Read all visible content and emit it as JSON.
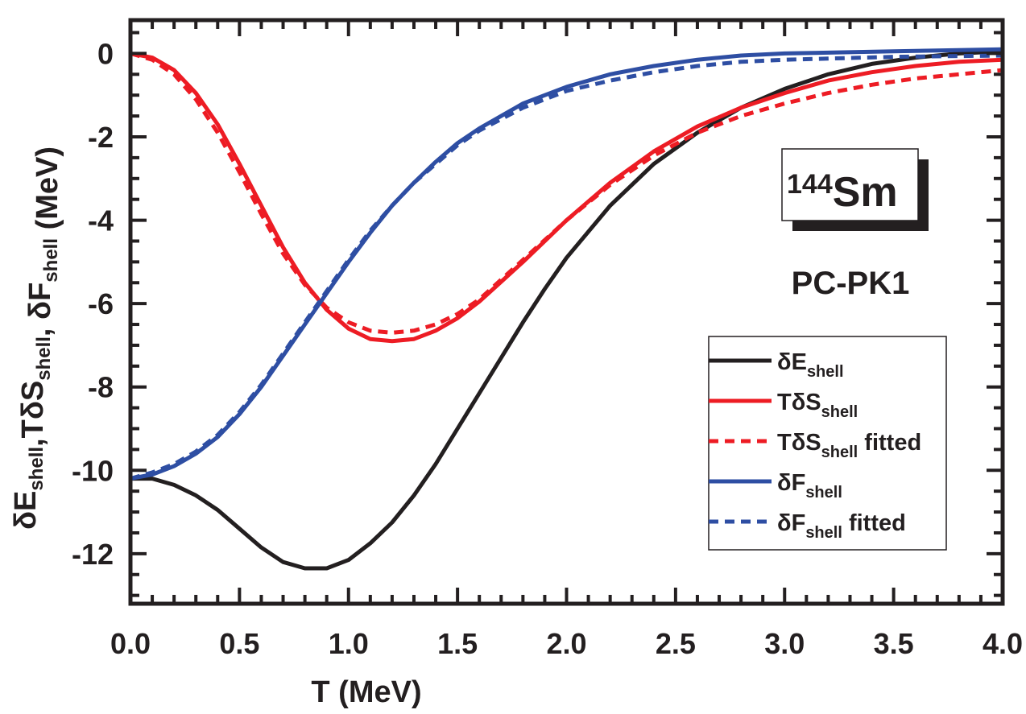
{
  "chart_data": {
    "type": "line",
    "title": "",
    "xlabel": "T (MeV)",
    "ylabel": {
      "parts": [
        {
          "main": "δE",
          "sub": "shell"
        },
        {
          "main": ",TδS",
          "sub": "shell"
        },
        {
          "main": ", δF",
          "sub": "shell"
        },
        {
          "main": " (MeV)",
          "sub": ""
        }
      ]
    },
    "xlim": [
      0,
      4.0
    ],
    "ylim": [
      -13.2,
      0.8
    ],
    "xticks": [
      0.0,
      0.5,
      1.0,
      1.5,
      2.0,
      2.5,
      3.0,
      3.5,
      4.0
    ],
    "xtick_labels": [
      "0.0",
      "0.5",
      "1.0",
      "1.5",
      "2.0",
      "2.5",
      "3.0",
      "3.5",
      "4.0"
    ],
    "x_minor_step": 0.1,
    "yticks": [
      0,
      -2,
      -4,
      -6,
      -8,
      -10,
      -12
    ],
    "ytick_labels": [
      "0",
      "-2",
      "-4",
      "-6",
      "-8",
      "-10",
      "-12"
    ],
    "y_minor_step": 0.5,
    "grid": false,
    "legend_placement": "bottom-right",
    "annotations": {
      "nucleus_mass": "144",
      "nucleus_symbol": "Sm",
      "model": "PC-PK1"
    },
    "series": [
      {
        "name": "δE_shell",
        "legend_main": "δE",
        "legend_sub": "shell",
        "legend_suffix": "",
        "color": "#231f20",
        "dashed": false,
        "x": [
          0,
          0.1,
          0.2,
          0.3,
          0.4,
          0.5,
          0.6,
          0.7,
          0.8,
          0.9,
          1.0,
          1.1,
          1.2,
          1.3,
          1.4,
          1.5,
          1.6,
          1.7,
          1.8,
          1.9,
          2.0,
          2.2,
          2.4,
          2.6,
          2.8,
          3.0,
          3.2,
          3.4,
          3.6,
          3.8,
          4.0
        ],
        "y": [
          -10.2,
          -10.2,
          -10.35,
          -10.6,
          -10.95,
          -11.4,
          -11.85,
          -12.2,
          -12.35,
          -12.35,
          -12.15,
          -11.75,
          -11.25,
          -10.6,
          -9.85,
          -9.0,
          -8.15,
          -7.3,
          -6.45,
          -5.65,
          -4.9,
          -3.65,
          -2.65,
          -1.9,
          -1.3,
          -0.85,
          -0.5,
          -0.25,
          -0.1,
          0.0,
          0.05
        ]
      },
      {
        "name": "TδS_shell",
        "legend_main": "TδS",
        "legend_sub": "shell",
        "legend_suffix": "",
        "color": "#ed1c24",
        "dashed": false,
        "x": [
          0,
          0.1,
          0.2,
          0.3,
          0.4,
          0.5,
          0.6,
          0.7,
          0.8,
          0.9,
          1.0,
          1.1,
          1.2,
          1.3,
          1.4,
          1.5,
          1.6,
          1.8,
          2.0,
          2.2,
          2.4,
          2.6,
          2.8,
          3.0,
          3.2,
          3.4,
          3.6,
          3.8,
          4.0
        ],
        "y": [
          0,
          -0.1,
          -0.4,
          -0.95,
          -1.7,
          -2.65,
          -3.65,
          -4.65,
          -5.5,
          -6.15,
          -6.6,
          -6.85,
          -6.9,
          -6.85,
          -6.65,
          -6.35,
          -5.95,
          -5.0,
          -4.0,
          -3.1,
          -2.35,
          -1.75,
          -1.3,
          -0.95,
          -0.65,
          -0.45,
          -0.3,
          -0.2,
          -0.15
        ]
      },
      {
        "name": "TδS_shell fitted",
        "legend_main": "TδS",
        "legend_sub": "shell",
        "legend_suffix": " fitted",
        "color": "#ed1c24",
        "dashed": true,
        "x": [
          0,
          0.1,
          0.2,
          0.3,
          0.4,
          0.5,
          0.6,
          0.7,
          0.8,
          0.9,
          1.0,
          1.1,
          1.2,
          1.3,
          1.4,
          1.5,
          1.6,
          1.8,
          2.0,
          2.2,
          2.4,
          2.6,
          2.8,
          3.0,
          3.2,
          3.4,
          3.6,
          3.8,
          4.0
        ],
        "y": [
          0,
          -0.15,
          -0.5,
          -1.1,
          -1.9,
          -2.85,
          -3.85,
          -4.8,
          -5.55,
          -6.1,
          -6.45,
          -6.65,
          -6.7,
          -6.65,
          -6.5,
          -6.25,
          -5.9,
          -4.95,
          -4.0,
          -3.15,
          -2.45,
          -1.9,
          -1.5,
          -1.2,
          -0.95,
          -0.75,
          -0.6,
          -0.5,
          -0.4
        ]
      },
      {
        "name": "δF_shell",
        "legend_main": "δF",
        "legend_sub": "shell",
        "legend_suffix": "",
        "color": "#2e4ea3",
        "dashed": false,
        "x": [
          0,
          0.1,
          0.2,
          0.3,
          0.4,
          0.5,
          0.6,
          0.7,
          0.8,
          0.9,
          1.0,
          1.1,
          1.2,
          1.3,
          1.4,
          1.5,
          1.6,
          1.8,
          2.0,
          2.2,
          2.4,
          2.6,
          2.8,
          3.0,
          3.5,
          4.0
        ],
        "y": [
          -10.2,
          -10.1,
          -9.9,
          -9.6,
          -9.2,
          -8.65,
          -8.0,
          -7.25,
          -6.5,
          -5.75,
          -5.0,
          -4.3,
          -3.65,
          -3.1,
          -2.6,
          -2.15,
          -1.8,
          -1.2,
          -0.8,
          -0.5,
          -0.3,
          -0.15,
          -0.05,
          0.0,
          0.05,
          0.1
        ]
      },
      {
        "name": "δF_shell fitted",
        "legend_main": "δF",
        "legend_sub": "shell",
        "legend_suffix": " fitted",
        "color": "#2e4ea3",
        "dashed": true,
        "x": [
          0,
          0.1,
          0.2,
          0.3,
          0.4,
          0.5,
          0.6,
          0.7,
          0.8,
          0.9,
          1.0,
          1.1,
          1.2,
          1.3,
          1.4,
          1.5,
          1.6,
          1.8,
          2.0,
          2.2,
          2.4,
          2.6,
          2.8,
          3.0,
          3.5,
          4.0
        ],
        "y": [
          -10.2,
          -10.05,
          -9.85,
          -9.55,
          -9.15,
          -8.6,
          -7.95,
          -7.2,
          -6.45,
          -5.7,
          -4.95,
          -4.25,
          -3.65,
          -3.1,
          -2.65,
          -2.2,
          -1.85,
          -1.3,
          -0.9,
          -0.65,
          -0.45,
          -0.3,
          -0.2,
          -0.15,
          -0.08,
          -0.05
        ]
      }
    ]
  }
}
